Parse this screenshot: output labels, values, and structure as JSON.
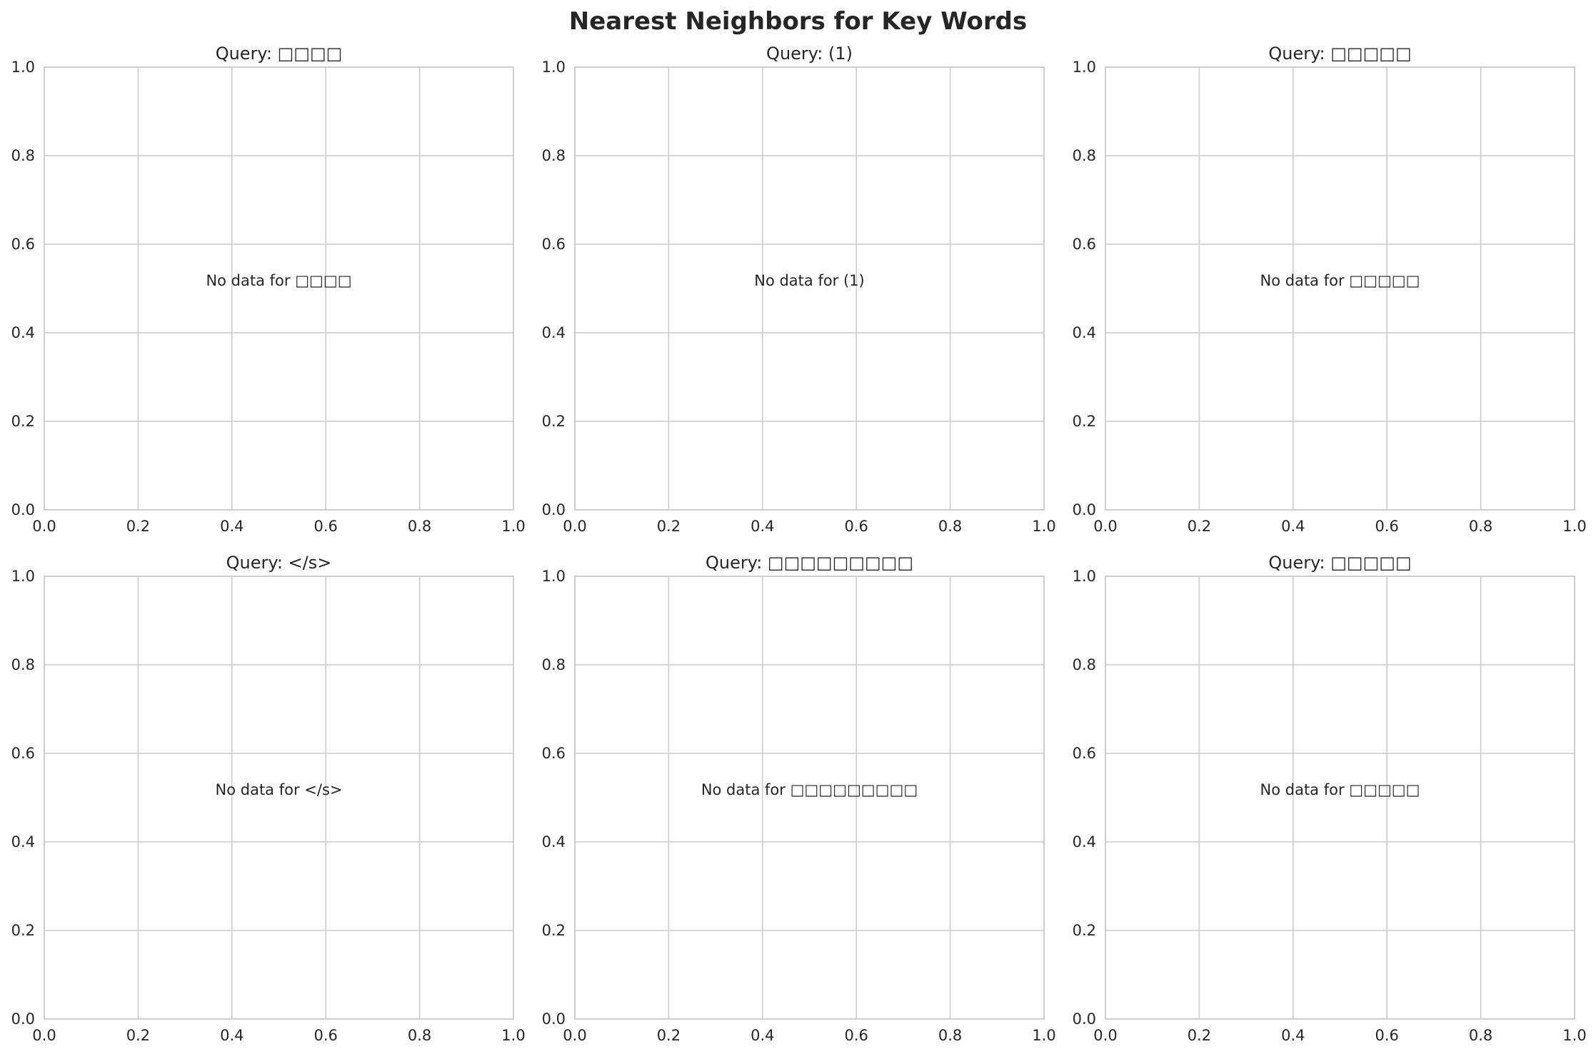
{
  "figure": {
    "suptitle": "Nearest Neighbors for Key Words"
  },
  "colors": {
    "grid": "#cccccc",
    "text": "#262626",
    "background": "#ffffff"
  },
  "chart_data": [
    {
      "type": "scatter",
      "title": "Query: □□□□",
      "annotation": "No data for □□□□",
      "xlim": [
        0,
        1
      ],
      "ylim": [
        0,
        1
      ],
      "xticks": [
        "0.0",
        "0.2",
        "0.4",
        "0.6",
        "0.8",
        "1.0"
      ],
      "yticks": [
        "0.0",
        "0.2",
        "0.4",
        "0.6",
        "0.8",
        "1.0"
      ],
      "grid": true,
      "series": []
    },
    {
      "type": "scatter",
      "title": "Query: (1)",
      "annotation": "No data for (1)",
      "xlim": [
        0,
        1
      ],
      "ylim": [
        0,
        1
      ],
      "xticks": [
        "0.0",
        "0.2",
        "0.4",
        "0.6",
        "0.8",
        "1.0"
      ],
      "yticks": [
        "0.0",
        "0.2",
        "0.4",
        "0.6",
        "0.8",
        "1.0"
      ],
      "grid": true,
      "series": []
    },
    {
      "type": "scatter",
      "title": "Query: □□□□□",
      "annotation": "No data for □□□□□",
      "xlim": [
        0,
        1
      ],
      "ylim": [
        0,
        1
      ],
      "xticks": [
        "0.0",
        "0.2",
        "0.4",
        "0.6",
        "0.8",
        "1.0"
      ],
      "yticks": [
        "0.0",
        "0.2",
        "0.4",
        "0.6",
        "0.8",
        "1.0"
      ],
      "grid": true,
      "series": []
    },
    {
      "type": "scatter",
      "title": "Query: </s>",
      "annotation": "No data for </s>",
      "xlim": [
        0,
        1
      ],
      "ylim": [
        0,
        1
      ],
      "xticks": [
        "0.0",
        "0.2",
        "0.4",
        "0.6",
        "0.8",
        "1.0"
      ],
      "yticks": [
        "0.0",
        "0.2",
        "0.4",
        "0.6",
        "0.8",
        "1.0"
      ],
      "grid": true,
      "series": []
    },
    {
      "type": "scatter",
      "title": "Query: □□□□□□□□□",
      "annotation": "No data for □□□□□□□□□",
      "xlim": [
        0,
        1
      ],
      "ylim": [
        0,
        1
      ],
      "xticks": [
        "0.0",
        "0.2",
        "0.4",
        "0.6",
        "0.8",
        "1.0"
      ],
      "yticks": [
        "0.0",
        "0.2",
        "0.4",
        "0.6",
        "0.8",
        "1.0"
      ],
      "grid": true,
      "series": []
    },
    {
      "type": "scatter",
      "title": "Query: □□□□□",
      "annotation": "No data for □□□□□",
      "xlim": [
        0,
        1
      ],
      "ylim": [
        0,
        1
      ],
      "xticks": [
        "0.0",
        "0.2",
        "0.4",
        "0.6",
        "0.8",
        "1.0"
      ],
      "yticks": [
        "0.0",
        "0.2",
        "0.4",
        "0.6",
        "0.8",
        "1.0"
      ],
      "grid": true,
      "series": []
    }
  ]
}
